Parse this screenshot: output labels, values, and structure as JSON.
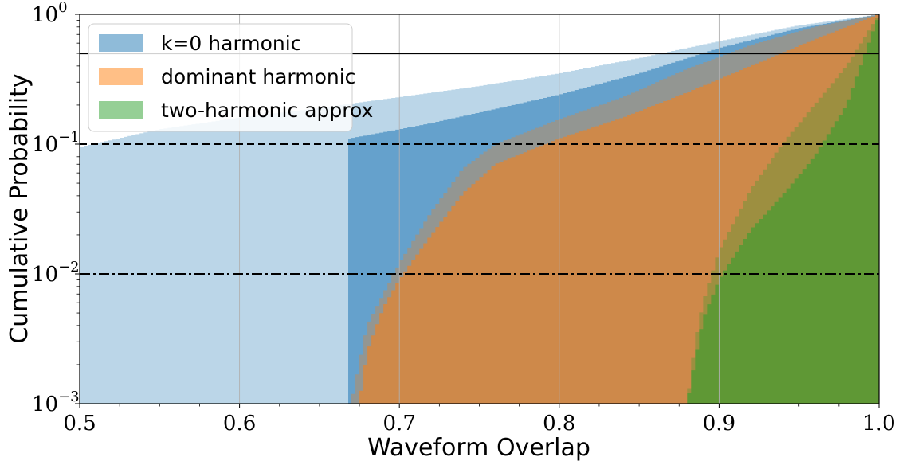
{
  "chart_data": {
    "type": "area",
    "subtype": "cumulative-histogram",
    "xlabel": "Waveform Overlap",
    "ylabel": "Cumulative Probability",
    "xlim": [
      0.5,
      1.0
    ],
    "ylim": [
      0.001,
      1
    ],
    "yscale": "log",
    "grid": "vertical",
    "legend_position": "top-left",
    "x_ticks": [
      0.5,
      0.6,
      0.7,
      0.8,
      0.9,
      1.0
    ],
    "x_tick_labels": [
      "0.5",
      "0.6",
      "0.7",
      "0.8",
      "0.9",
      "1.0"
    ],
    "y_ticks": [
      0.001,
      0.01,
      0.1,
      1
    ],
    "y_tick_base": "10",
    "y_tick_exponents": [
      "−3",
      "−2",
      "−1",
      "0"
    ],
    "reference_lines": [
      {
        "y": 0.5,
        "style": "solid"
      },
      {
        "y": 0.1,
        "style": "dashed"
      },
      {
        "y": 0.01,
        "style": "dashdot"
      }
    ],
    "series": [
      {
        "name": "k=0 harmonic",
        "color": "#1f77b4",
        "light_envelope": {
          "x": [
            0.5,
            0.55,
            0.6,
            0.65,
            0.7,
            0.75,
            0.8,
            0.85,
            0.9,
            0.95,
            1.0
          ],
          "y": [
            0.095,
            0.13,
            0.16,
            0.19,
            0.23,
            0.28,
            0.35,
            0.46,
            0.62,
            0.82,
            1.0
          ]
        },
        "x": [
          0.5,
          0.55,
          0.6,
          0.65,
          0.7,
          0.72,
          0.75,
          0.8,
          0.85,
          0.9,
          0.95,
          1.0
        ],
        "y": [
          0.048,
          0.063,
          0.081,
          0.1,
          0.13,
          0.145,
          0.175,
          0.24,
          0.35,
          0.55,
          0.78,
          1.0
        ],
        "lower_edge_x": 0.668
      },
      {
        "name": "dominant harmonic",
        "color": "#ff7f0e",
        "light_envelope": {
          "x": [
            0.67,
            0.675,
            0.68,
            0.69,
            0.7,
            0.72,
            0.74,
            0.76,
            0.8,
            0.84,
            0.88,
            0.92,
            0.96,
            1.0
          ],
          "y": [
            0.001,
            0.002,
            0.004,
            0.007,
            0.012,
            0.03,
            0.065,
            0.1,
            0.155,
            0.23,
            0.38,
            0.58,
            0.8,
            1.0
          ]
        },
        "x": [
          0.675,
          0.68,
          0.69,
          0.7,
          0.72,
          0.74,
          0.76,
          0.8,
          0.84,
          0.88,
          0.92,
          0.96,
          1.0
        ],
        "y": [
          0.001,
          0.0025,
          0.0055,
          0.009,
          0.02,
          0.042,
          0.07,
          0.11,
          0.16,
          0.25,
          0.4,
          0.64,
          1.0
        ],
        "lower_edge_x": 0.672
      },
      {
        "name": "two-harmonic approx",
        "color": "#2ca02c",
        "light_envelope": {
          "x": [
            0.88,
            0.885,
            0.89,
            0.9,
            0.92,
            0.94,
            0.96,
            0.98,
            1.0
          ],
          "y": [
            0.001,
            0.003,
            0.006,
            0.015,
            0.045,
            0.1,
            0.2,
            0.4,
            1.0
          ]
        },
        "x": [
          0.88,
          0.885,
          0.89,
          0.9,
          0.92,
          0.94,
          0.96,
          0.98,
          1.0
        ],
        "y": [
          0.001,
          0.0022,
          0.0045,
          0.009,
          0.022,
          0.04,
          0.08,
          0.2,
          1.0
        ],
        "lower_edge_x": 0.878
      }
    ]
  }
}
